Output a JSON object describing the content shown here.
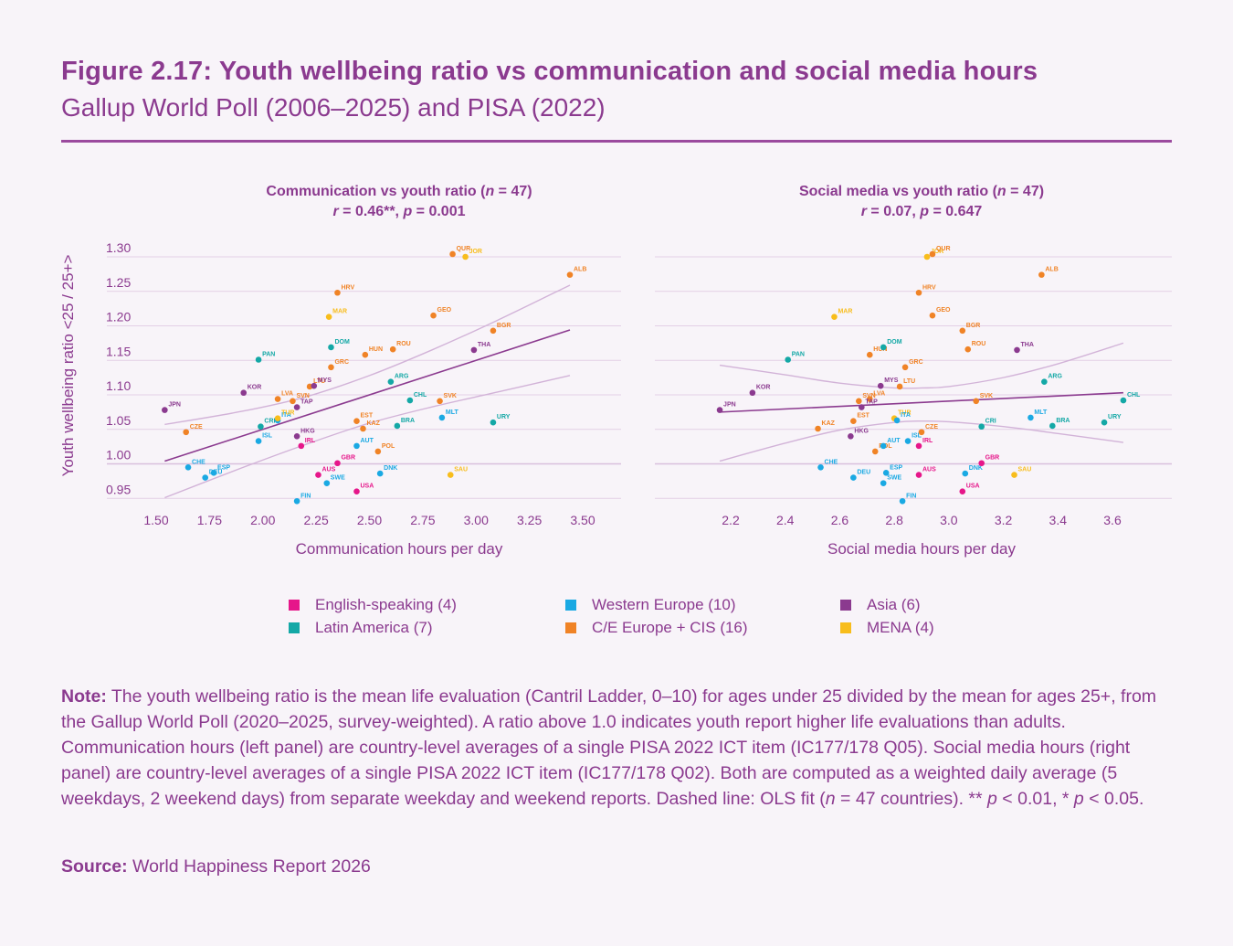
{
  "header": {
    "title": "Figure 2.17: Youth wellbeing ratio vs communication and social media hours",
    "subtitle": "Gallup World Poll (2006–2025) and PISA (2022)"
  },
  "colors": {
    "English-speaking": "#e6168a",
    "Western Europe": "#1aa9e3",
    "Asia": "#8b3a8f",
    "Latin America": "#14a8a6",
    "C/E Europe + CIS": "#f08326",
    "MENA": "#f8bd1c",
    "fit_line": "#8b3a8f",
    "ci_band": "#d2b3d8",
    "gridline": "#e3cfe6"
  },
  "legend": [
    {
      "label": "English-speaking (4)",
      "group": "English-speaking"
    },
    {
      "label": "Western Europe (10)",
      "group": "Western Europe"
    },
    {
      "label": "Asia (6)",
      "group": "Asia"
    },
    {
      "label": "Latin America (7)",
      "group": "Latin America"
    },
    {
      "label": "C/E Europe + CIS (16)",
      "group": "C/E Europe + CIS"
    },
    {
      "label": "MENA (4)",
      "group": "MENA"
    }
  ],
  "note": {
    "label": "Note:",
    "text_before_n": " The youth wellbeing ratio is the mean life evaluation (Cantril Ladder, 0–10) for ages under 25 divided by the mean for ages 25+, from the Gallup World Poll (2020–2025, survey-weighted). A ratio above 1.0 indicates youth report higher life evaluations than adults. Communication hours (left panel) are country-level averages of a single PISA 2022 ICT item (IC177/178 Q05). Social media hours (right panel) are country-level averages of a single PISA 2022 ICT item (IC177/178 Q02). Both are computed as a weighted daily average (5 weekdays, 2 weekend days) from separate weekday and weekend reports. Dashed line: OLS fit (",
    "n_symbol": "n",
    "text_after_n": " = 47 countries). ** ",
    "p1": "p",
    "t1": " < 0.01, * ",
    "p2": "p",
    "t2": " < 0.05."
  },
  "source": {
    "label": "Source:",
    "text": " World Happiness Report 2026"
  },
  "chart_data": [
    {
      "type": "scatter",
      "title": "Communication vs youth ratio (n = 47)",
      "title_parts": {
        "pre": "Communication vs youth ratio (",
        "n": "n",
        "post": " = 47)"
      },
      "stats_parts": {
        "r": "r",
        "r_val": " = 0.46**, ",
        "p": "p",
        "p_val": " = 0.001"
      },
      "stats": "r = 0.46**, p = 0.001",
      "xlabel": "Communication hours per day",
      "ylabel": "Youth wellbeing ratio <25 / 25+>",
      "xlim": [
        1.45,
        3.7
      ],
      "ylim": [
        0.94,
        1.315
      ],
      "xticks": [
        1.5,
        1.75,
        2.0,
        2.25,
        2.5,
        2.75,
        3.0,
        3.25,
        3.5
      ],
      "xtick_labels": [
        "1.50",
        "1.75",
        "2.00",
        "2.25",
        "2.50",
        "2.75",
        "3.00",
        "3.25",
        "3.50"
      ],
      "yticks": [
        0.95,
        1.0,
        1.05,
        1.1,
        1.15,
        1.2,
        1.25,
        1.3
      ],
      "ytick_labels": [
        "0.95",
        "1.00",
        "1.05",
        "1.10",
        "1.15",
        "1.20",
        "1.25",
        "1.30"
      ],
      "grid": "horizontal",
      "fit": {
        "x": [
          1.54,
          3.44
        ],
        "y": [
          1.004,
          1.194
        ]
      },
      "ci_upper": {
        "x": [
          1.54,
          1.9,
          2.2,
          2.5,
          2.8,
          3.1,
          3.44
        ],
        "y": [
          1.057,
          1.076,
          1.097,
          1.128,
          1.166,
          1.208,
          1.259
        ]
      },
      "ci_lower": {
        "x": [
          1.54,
          1.9,
          2.2,
          2.5,
          2.8,
          3.1,
          3.44
        ],
        "y": [
          0.951,
          0.994,
          1.028,
          1.059,
          1.083,
          1.104,
          1.128
        ]
      },
      "points": [
        {
          "code": "JPN",
          "group": "Asia",
          "x": 1.54,
          "y": 1.078
        },
        {
          "code": "CZE",
          "group": "C/E Europe + CIS",
          "x": 1.64,
          "y": 1.046
        },
        {
          "code": "KOR",
          "group": "Asia",
          "x": 1.91,
          "y": 1.103
        },
        {
          "code": "CHE",
          "group": "Western Europe",
          "x": 1.65,
          "y": 0.995
        },
        {
          "code": "DEU",
          "group": "Western Europe",
          "x": 1.73,
          "y": 0.98
        },
        {
          "code": "ESP",
          "group": "Western Europe",
          "x": 1.77,
          "y": 0.987
        },
        {
          "code": "PAN",
          "group": "Latin America",
          "x": 1.98,
          "y": 1.151
        },
        {
          "code": "ISL",
          "group": "Western Europe",
          "x": 1.98,
          "y": 1.033
        },
        {
          "code": "CRI",
          "group": "Latin America",
          "x": 1.99,
          "y": 1.054
        },
        {
          "code": "ITA",
          "group": "Western Europe",
          "x": 2.07,
          "y": 1.063
        },
        {
          "code": "TUR",
          "group": "MENA",
          "x": 2.07,
          "y": 1.066
        },
        {
          "code": "LVA",
          "group": "C/E Europe + CIS",
          "x": 2.07,
          "y": 1.094
        },
        {
          "code": "SVN",
          "group": "C/E Europe + CIS",
          "x": 2.14,
          "y": 1.091
        },
        {
          "code": "TAP",
          "group": "Asia",
          "x": 2.16,
          "y": 1.082
        },
        {
          "code": "HKG",
          "group": "Asia",
          "x": 2.16,
          "y": 1.04
        },
        {
          "code": "IRL",
          "group": "English-speaking",
          "x": 2.18,
          "y": 1.026
        },
        {
          "code": "FIN",
          "group": "Western Europe",
          "x": 2.16,
          "y": 0.946
        },
        {
          "code": "LTU",
          "group": "C/E Europe + CIS",
          "x": 2.22,
          "y": 1.112
        },
        {
          "code": "MYS",
          "group": "Asia",
          "x": 2.24,
          "y": 1.113
        },
        {
          "code": "AUS",
          "group": "English-speaking",
          "x": 2.26,
          "y": 0.984
        },
        {
          "code": "SWE",
          "group": "Western Europe",
          "x": 2.3,
          "y": 0.972
        },
        {
          "code": "GBR",
          "group": "English-speaking",
          "x": 2.35,
          "y": 1.001
        },
        {
          "code": "MAR",
          "group": "MENA",
          "x": 2.31,
          "y": 1.213
        },
        {
          "code": "DOM",
          "group": "Latin America",
          "x": 2.32,
          "y": 1.169
        },
        {
          "code": "GRC",
          "group": "C/E Europe + CIS",
          "x": 2.32,
          "y": 1.14
        },
        {
          "code": "HRV",
          "group": "C/E Europe + CIS",
          "x": 2.35,
          "y": 1.248
        },
        {
          "code": "HUN",
          "group": "C/E Europe + CIS",
          "x": 2.48,
          "y": 1.158
        },
        {
          "code": "ROU",
          "group": "C/E Europe + CIS",
          "x": 2.61,
          "y": 1.166
        },
        {
          "code": "ARG",
          "group": "Latin America",
          "x": 2.6,
          "y": 1.119
        },
        {
          "code": "EST",
          "group": "C/E Europe + CIS",
          "x": 2.44,
          "y": 1.062
        },
        {
          "code": "KAZ",
          "group": "C/E Europe + CIS",
          "x": 2.47,
          "y": 1.051
        },
        {
          "code": "AUT",
          "group": "Western Europe",
          "x": 2.44,
          "y": 1.026
        },
        {
          "code": "POL",
          "group": "C/E Europe + CIS",
          "x": 2.54,
          "y": 1.018
        },
        {
          "code": "USA",
          "group": "English-speaking",
          "x": 2.44,
          "y": 0.96
        },
        {
          "code": "DNK",
          "group": "Western Europe",
          "x": 2.55,
          "y": 0.986
        },
        {
          "code": "BRA",
          "group": "Latin America",
          "x": 2.63,
          "y": 1.055
        },
        {
          "code": "CHL",
          "group": "Latin America",
          "x": 2.69,
          "y": 1.092
        },
        {
          "code": "GEO",
          "group": "C/E Europe + CIS",
          "x": 2.8,
          "y": 1.215
        },
        {
          "code": "QUR",
          "group": "C/E Europe + CIS",
          "x": 2.89,
          "y": 1.304
        },
        {
          "code": "JOR",
          "group": "MENA",
          "x": 2.95,
          "y": 1.3
        },
        {
          "code": "SVK",
          "group": "C/E Europe + CIS",
          "x": 2.83,
          "y": 1.091
        },
        {
          "code": "MLT",
          "group": "Western Europe",
          "x": 2.84,
          "y": 1.067
        },
        {
          "code": "SAU",
          "group": "MENA",
          "x": 2.88,
          "y": 0.984
        },
        {
          "code": "THA",
          "group": "Asia",
          "x": 2.99,
          "y": 1.165
        },
        {
          "code": "BGR",
          "group": "C/E Europe + CIS",
          "x": 3.08,
          "y": 1.193
        },
        {
          "code": "URY",
          "group": "Latin America",
          "x": 3.08,
          "y": 1.06
        },
        {
          "code": "ALB",
          "group": "C/E Europe + CIS",
          "x": 3.44,
          "y": 1.274
        }
      ]
    },
    {
      "type": "scatter",
      "title": "Social media vs youth ratio (n = 47)",
      "title_parts": {
        "pre": "Social media vs youth ratio (",
        "n": "n",
        "post": " = 47)"
      },
      "stats_parts": {
        "r": "r",
        "r_val": " = 0.07, ",
        "p": "p",
        "p_val": " = 0.647"
      },
      "stats": "r = 0.07, p = 0.647",
      "xlabel": "Social media hours per day",
      "ylabel": "",
      "xlim": [
        2.14,
        3.82
      ],
      "ylim": [
        0.94,
        1.315
      ],
      "xticks": [
        2.2,
        2.4,
        2.6,
        2.8,
        3.0,
        3.2,
        3.4,
        3.6
      ],
      "xtick_labels": [
        "2.2",
        "2.4",
        "2.6",
        "2.8",
        "3.0",
        "3.2",
        "3.4",
        "3.6"
      ],
      "yticks": [
        0.95,
        1.0,
        1.05,
        1.1,
        1.15,
        1.2,
        1.25,
        1.3
      ],
      "grid": "horizontal",
      "fit": {
        "x": [
          2.16,
          3.64
        ],
        "y": [
          1.075,
          1.103
        ]
      },
      "ci_upper": {
        "x": [
          2.16,
          2.4,
          2.6,
          2.8,
          2.9,
          3.0,
          3.2,
          3.4,
          3.64
        ],
        "y": [
          1.143,
          1.129,
          1.117,
          1.11,
          1.11,
          1.112,
          1.125,
          1.145,
          1.175
        ]
      },
      "ci_lower": {
        "x": [
          2.16,
          2.4,
          2.6,
          2.8,
          2.9,
          3.0,
          3.2,
          3.4,
          3.64
        ],
        "y": [
          1.004,
          1.03,
          1.049,
          1.06,
          1.062,
          1.061,
          1.054,
          1.044,
          1.031
        ]
      },
      "points": [
        {
          "code": "JPN",
          "group": "Asia",
          "x": 2.16,
          "y": 1.078
        },
        {
          "code": "KOR",
          "group": "Asia",
          "x": 2.28,
          "y": 1.103
        },
        {
          "code": "PAN",
          "group": "Latin America",
          "x": 2.41,
          "y": 1.151
        },
        {
          "code": "MAR",
          "group": "MENA",
          "x": 2.58,
          "y": 1.213
        },
        {
          "code": "KAZ",
          "group": "C/E Europe + CIS",
          "x": 2.52,
          "y": 1.051
        },
        {
          "code": "CHE",
          "group": "Western Europe",
          "x": 2.53,
          "y": 0.995
        },
        {
          "code": "DEU",
          "group": "Western Europe",
          "x": 2.65,
          "y": 0.98
        },
        {
          "code": "HKG",
          "group": "Asia",
          "x": 2.64,
          "y": 1.04
        },
        {
          "code": "EST",
          "group": "C/E Europe + CIS",
          "x": 2.65,
          "y": 1.062
        },
        {
          "code": "HUN",
          "group": "C/E Europe + CIS",
          "x": 2.71,
          "y": 1.158
        },
        {
          "code": "POL",
          "group": "C/E Europe + CIS",
          "x": 2.73,
          "y": 1.018
        },
        {
          "code": "SVN",
          "group": "C/E Europe + CIS",
          "x": 2.67,
          "y": 1.091
        },
        {
          "code": "LVA",
          "group": "C/E Europe + CIS",
          "x": 2.71,
          "y": 1.094
        },
        {
          "code": "TAP",
          "group": "Asia",
          "x": 2.68,
          "y": 1.082
        },
        {
          "code": "MYS",
          "group": "Asia",
          "x": 2.75,
          "y": 1.113
        },
        {
          "code": "AUT",
          "group": "Western Europe",
          "x": 2.76,
          "y": 1.026
        },
        {
          "code": "DOM",
          "group": "Latin America",
          "x": 2.76,
          "y": 1.169
        },
        {
          "code": "ESP",
          "group": "Western Europe",
          "x": 2.77,
          "y": 0.987
        },
        {
          "code": "SWE",
          "group": "Western Europe",
          "x": 2.76,
          "y": 0.972
        },
        {
          "code": "TUR",
          "group": "MENA",
          "x": 2.8,
          "y": 1.066
        },
        {
          "code": "ITA",
          "group": "Western Europe",
          "x": 2.81,
          "y": 1.063
        },
        {
          "code": "LTU",
          "group": "C/E Europe + CIS",
          "x": 2.82,
          "y": 1.112
        },
        {
          "code": "FIN",
          "group": "Western Europe",
          "x": 2.83,
          "y": 0.946
        },
        {
          "code": "ISL",
          "group": "Western Europe",
          "x": 2.85,
          "y": 1.033
        },
        {
          "code": "GRC",
          "group": "C/E Europe + CIS",
          "x": 2.84,
          "y": 1.14
        },
        {
          "code": "IRL",
          "group": "English-speaking",
          "x": 2.89,
          "y": 1.026
        },
        {
          "code": "HRV",
          "group": "C/E Europe + CIS",
          "x": 2.89,
          "y": 1.248
        },
        {
          "code": "AUS",
          "group": "English-speaking",
          "x": 2.89,
          "y": 0.984
        },
        {
          "code": "CZE",
          "group": "C/E Europe + CIS",
          "x": 2.9,
          "y": 1.046
        },
        {
          "code": "JOR",
          "group": "MENA",
          "x": 2.92,
          "y": 1.3
        },
        {
          "code": "QUR",
          "group": "C/E Europe + CIS",
          "x": 2.94,
          "y": 1.304
        },
        {
          "code": "GEO",
          "group": "C/E Europe + CIS",
          "x": 2.94,
          "y": 1.215
        },
        {
          "code": "USA",
          "group": "English-speaking",
          "x": 3.05,
          "y": 0.96
        },
        {
          "code": "BGR",
          "group": "C/E Europe + CIS",
          "x": 3.05,
          "y": 1.193
        },
        {
          "code": "DNK",
          "group": "Western Europe",
          "x": 3.06,
          "y": 0.986
        },
        {
          "code": "ROU",
          "group": "C/E Europe + CIS",
          "x": 3.07,
          "y": 1.166
        },
        {
          "code": "SVK",
          "group": "C/E Europe + CIS",
          "x": 3.1,
          "y": 1.091
        },
        {
          "code": "GBR",
          "group": "English-speaking",
          "x": 3.12,
          "y": 1.001
        },
        {
          "code": "CRI",
          "group": "Latin America",
          "x": 3.12,
          "y": 1.054
        },
        {
          "code": "THA",
          "group": "Asia",
          "x": 3.25,
          "y": 1.165
        },
        {
          "code": "SAU",
          "group": "MENA",
          "x": 3.24,
          "y": 0.984
        },
        {
          "code": "MLT",
          "group": "Western Europe",
          "x": 3.3,
          "y": 1.067
        },
        {
          "code": "ARG",
          "group": "Latin America",
          "x": 3.35,
          "y": 1.119
        },
        {
          "code": "BRA",
          "group": "Latin America",
          "x": 3.38,
          "y": 1.055
        },
        {
          "code": "ALB",
          "group": "C/E Europe + CIS",
          "x": 3.34,
          "y": 1.274
        },
        {
          "code": "URY",
          "group": "Latin America",
          "x": 3.57,
          "y": 1.06
        },
        {
          "code": "CHL",
          "group": "Latin America",
          "x": 3.64,
          "y": 1.092
        }
      ]
    }
  ]
}
